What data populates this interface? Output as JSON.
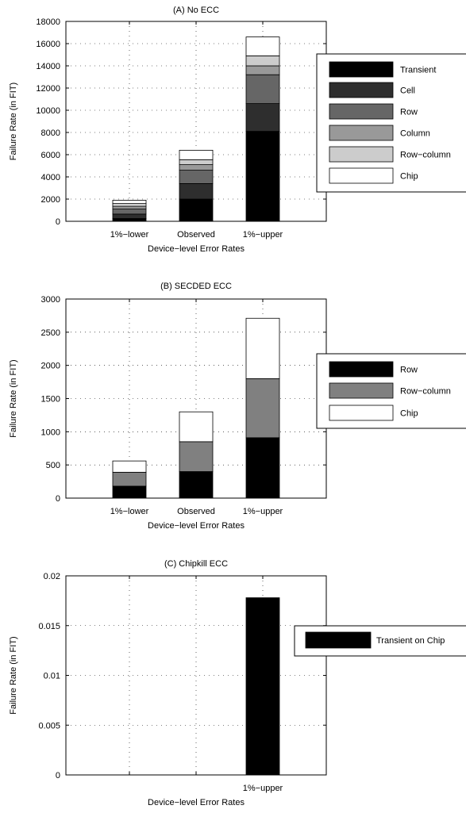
{
  "chart_data": [
    {
      "type": "bar",
      "stacked": true,
      "title": "(A) No ECC",
      "xlabel": "Device−level Error Rates",
      "ylabel": "Failure Rate (in FIT)",
      "categories": [
        "1%−lower",
        "Observed",
        "1%−upper"
      ],
      "ylim": [
        0,
        18000
      ],
      "yticks": [
        0,
        2000,
        4000,
        6000,
        8000,
        10000,
        12000,
        14000,
        16000,
        18000
      ],
      "ytick_labels": [
        "0",
        "2000",
        "4000",
        "6000",
        "8000",
        "10000",
        "12000",
        "14000",
        "16000",
        "18000"
      ],
      "grid": "dotted-horizontal",
      "legend_position": "right-outside",
      "series": [
        {
          "name": "Transient",
          "color": "#000000",
          "values": [
            250,
            2000,
            8100
          ]
        },
        {
          "name": "Cell",
          "color": "#2e2e2e",
          "values": [
            400,
            1400,
            2500
          ]
        },
        {
          "name": "Row",
          "color": "#666666",
          "values": [
            450,
            1200,
            2600
          ]
        },
        {
          "name": "Column",
          "color": "#999999",
          "values": [
            250,
            500,
            800
          ]
        },
        {
          "name": "Row−column",
          "color": "#cccccc",
          "values": [
            250,
            450,
            900
          ]
        },
        {
          "name": "Chip",
          "color": "#ffffff",
          "values": [
            300,
            850,
            1700
          ]
        }
      ]
    },
    {
      "type": "bar",
      "stacked": true,
      "title": "(B) SECDED ECC",
      "xlabel": "Device−level Error Rates",
      "ylabel": "Failure Rate (in FIT)",
      "categories": [
        "1%−lower",
        "Observed",
        "1%−upper"
      ],
      "ylim": [
        0,
        3000
      ],
      "yticks": [
        0,
        500,
        1000,
        1500,
        2000,
        2500,
        3000
      ],
      "ytick_labels": [
        "0",
        "500",
        "1000",
        "1500",
        "2000",
        "2500",
        "3000"
      ],
      "grid": "dotted-horizontal",
      "legend_position": "right-outside",
      "series": [
        {
          "name": "Row",
          "color": "#000000",
          "values": [
            180,
            400,
            910
          ]
        },
        {
          "name": "Row−column",
          "color": "#808080",
          "values": [
            210,
            450,
            890
          ]
        },
        {
          "name": "Chip",
          "color": "#ffffff",
          "values": [
            170,
            450,
            910
          ]
        }
      ]
    },
    {
      "type": "bar",
      "stacked": true,
      "title": "(C) Chipkill ECC",
      "xlabel": "Device−level Error Rates",
      "ylabel": "Failure Rate (in FIT)",
      "categories": [
        "",
        "",
        "1%−upper"
      ],
      "ylim": [
        0,
        0.02
      ],
      "yticks": [
        0,
        0.005,
        0.01,
        0.015,
        0.02
      ],
      "ytick_labels": [
        "0",
        "0.005",
        "0.01",
        "0.015",
        "0.02"
      ],
      "grid": "dotted-horizontal",
      "legend_position": "right-outside",
      "series": [
        {
          "name": "Transient on Chip",
          "color": "#000000",
          "values": [
            0,
            0,
            0.0178
          ]
        }
      ]
    }
  ]
}
